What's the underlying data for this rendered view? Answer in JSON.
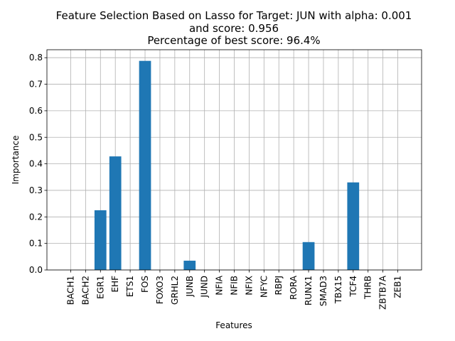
{
  "chart_data": {
    "type": "bar",
    "title_lines": [
      "Feature Selection Based on Lasso for Target: JUN with alpha: 0.001",
      "and score: 0.956",
      "Percentage of best score: 96.4%"
    ],
    "xlabel": "Features",
    "ylabel": "Importance",
    "categories": [
      "BACH1",
      "BACH2",
      "EGR1",
      "EHF",
      "ETS1",
      "FOS",
      "FOXO3",
      "GRHL2",
      "JUNB",
      "JUND",
      "NFIA",
      "NFIB",
      "NFIX",
      "NFYC",
      "RBPJ",
      "RORA",
      "RUNX1",
      "SMAD3",
      "TBX15",
      "TCF4",
      "THRB",
      "ZBTB7A",
      "ZEB1"
    ],
    "values": [
      0,
      0,
      0.225,
      0.428,
      0,
      0.788,
      0,
      0,
      0.035,
      0,
      0,
      0,
      0,
      0,
      0,
      0,
      0.105,
      0,
      0,
      0.33,
      0,
      0,
      0
    ],
    "ylim": [
      0,
      0.83
    ],
    "yticks": [
      "0.0",
      "0.1",
      "0.2",
      "0.3",
      "0.4",
      "0.5",
      "0.6",
      "0.7",
      "0.8"
    ],
    "grid": true,
    "bar_color": "#1f77b4"
  }
}
